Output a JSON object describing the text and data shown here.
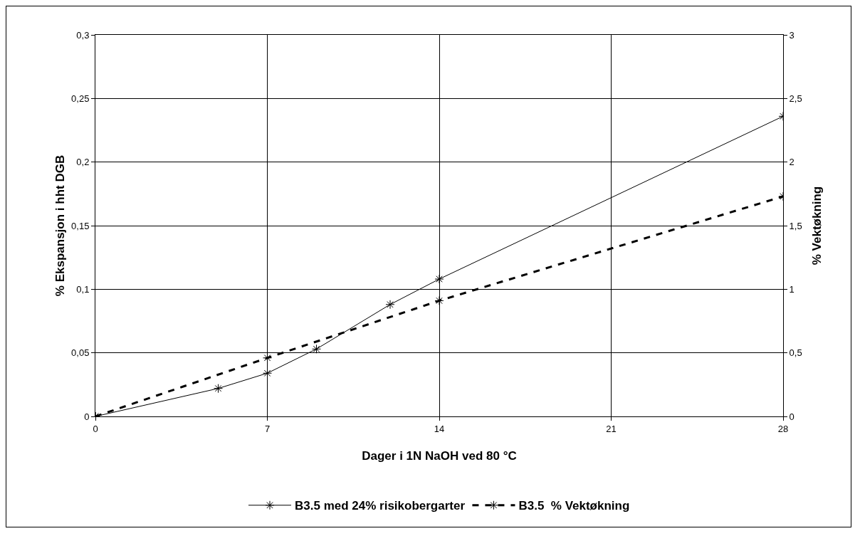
{
  "chart_data": {
    "type": "line",
    "xlabel": "Dager i 1N NaOH ved 80 °C",
    "ylabel": "% Ekspansjon i hht DGB",
    "y2label": "% Vektøkning",
    "series": [
      {
        "name": "B3.5 med 24% risikobergarter",
        "color": "#000000",
        "x": [
          0,
          5,
          7,
          9,
          12,
          14,
          28
        ],
        "values": [
          0,
          0.022,
          0.034,
          0.053,
          0.088,
          0.108,
          0.236
        ],
        "line_style": "solid"
      },
      {
        "name": "B3.5  % Vektøkning",
        "color": "#000000",
        "axis": "y2",
        "x": [
          0,
          7,
          14,
          28
        ],
        "values": [
          0,
          0.46,
          0.91,
          1.73
        ],
        "line_style": "dashed"
      }
    ],
    "xlim": [
      0,
      28
    ],
    "xticks": [
      0,
      7,
      14,
      21,
      28
    ],
    "ylim": [
      0,
      0.3
    ],
    "yticks": [
      {
        "value": 0,
        "label": "0"
      },
      {
        "value": 0.05,
        "label": "0,05"
      },
      {
        "value": 0.1,
        "label": "0,1"
      },
      {
        "value": 0.15,
        "label": "0,15"
      },
      {
        "value": 0.2,
        "label": "0,2"
      },
      {
        "value": 0.25,
        "label": "0,25"
      },
      {
        "value": 0.3,
        "label": "0,3"
      }
    ],
    "y2lim": [
      0,
      3
    ],
    "y2ticks": [
      {
        "value": 0,
        "label": "0"
      },
      {
        "value": 0.5,
        "label": "0,5"
      },
      {
        "value": 1,
        "label": "1"
      },
      {
        "value": 1.5,
        "label": "1,5"
      },
      {
        "value": 2,
        "label": "2"
      },
      {
        "value": 2.5,
        "label": "2,5"
      },
      {
        "value": 3,
        "label": "3"
      }
    ],
    "grid": true,
    "legend": "bottom",
    "marker": "cross"
  }
}
